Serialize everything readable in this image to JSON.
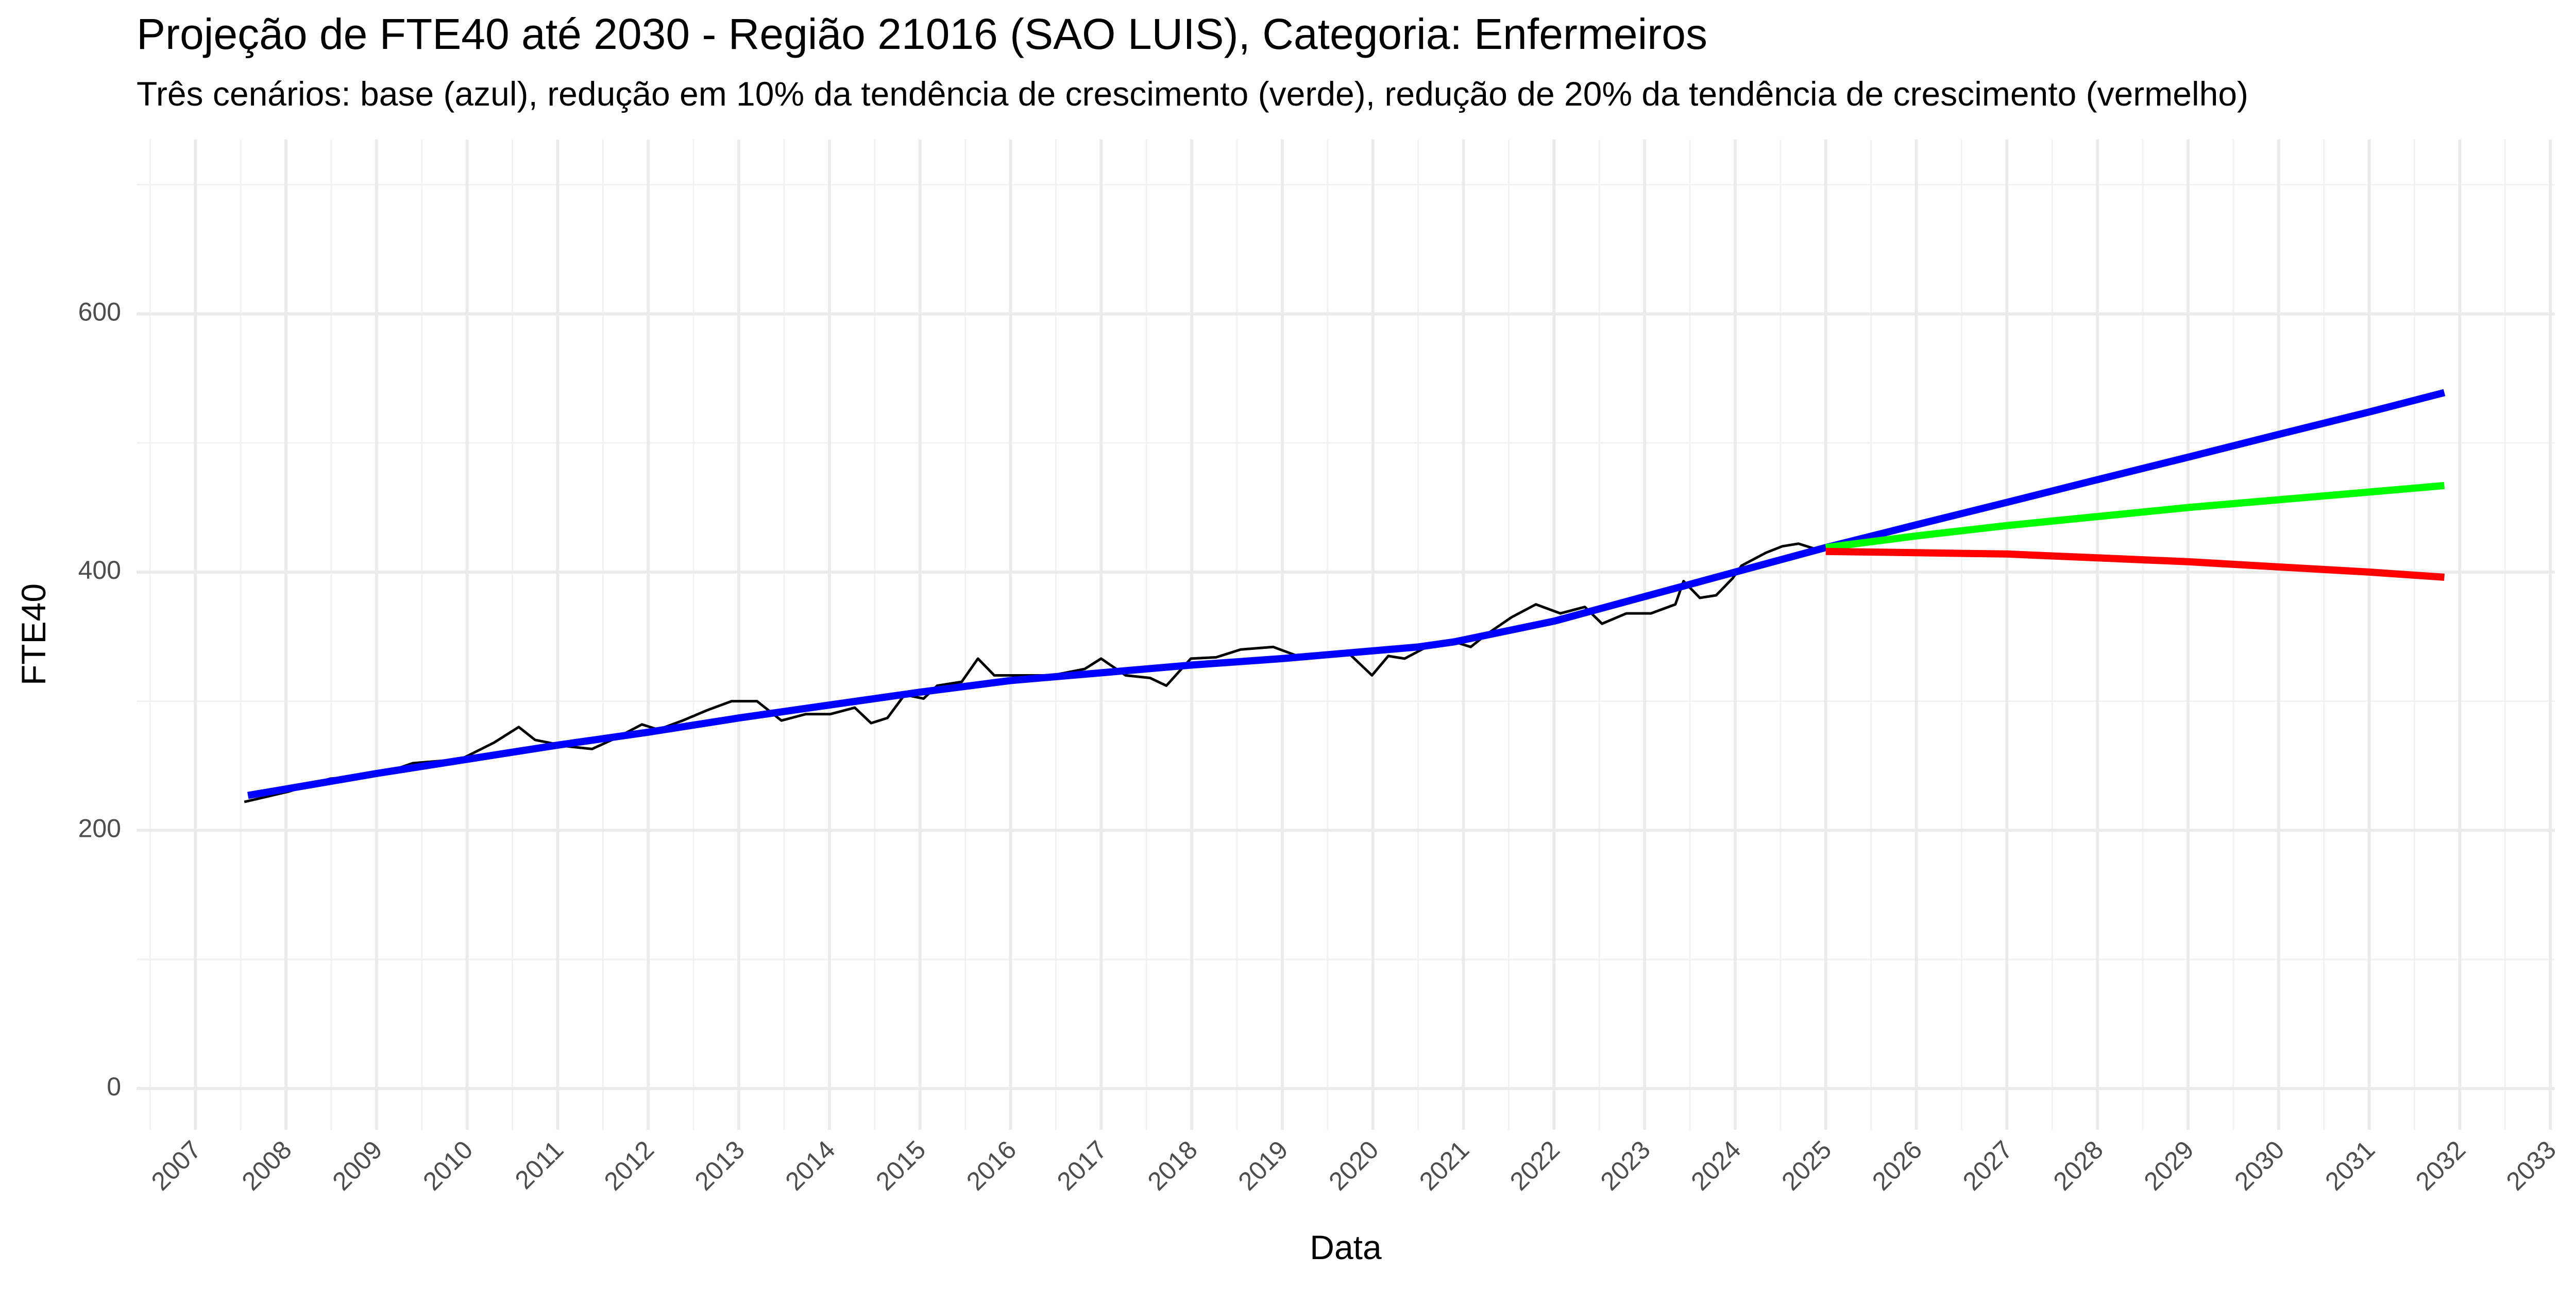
{
  "chart_data": {
    "type": "line",
    "title": "Projeção de FTE40 até 2030 - Região 21016 (SAO LUIS), Categoria: Enfermeiros",
    "subtitle": "Três cenários: base (azul), redução em 10% da tendência de crescimento (verde), redução de 20% da tendência de crescimento (vermelho)",
    "x_label": "Data",
    "y_label": "FTE40",
    "xlim": [
      2006.35,
      2033.05
    ],
    "ylim": [
      -32,
      735
    ],
    "xticks": [
      2007,
      2008,
      2009,
      2010,
      2011,
      2012,
      2013,
      2014,
      2015,
      2016,
      2017,
      2018,
      2019,
      2020,
      2021,
      2022,
      2023,
      2024,
      2025,
      2026,
      2027,
      2028,
      2029,
      2030,
      2031,
      2032,
      2033
    ],
    "xminor": [
      2006.5,
      2007.5,
      2008.5,
      2009.5,
      2010.5,
      2011.5,
      2012.5,
      2013.5,
      2014.5,
      2015.5,
      2016.5,
      2017.5,
      2018.5,
      2019.5,
      2020.5,
      2021.5,
      2022.5,
      2023.5,
      2024.5,
      2025.5,
      2026.5,
      2027.5,
      2028.5,
      2029.5,
      2030.5,
      2031.5,
      2032.5
    ],
    "yticks": [
      0,
      200,
      400,
      600
    ],
    "yminor": [
      100,
      300,
      500,
      700
    ],
    "grid": true,
    "series": [
      {
        "color": "#000000",
        "x": [
          2007.54,
          2008.03,
          2008.49,
          2009.03,
          2009.4,
          2009.93,
          2010.3,
          2010.57,
          2010.75,
          2011.11,
          2011.38,
          2011.66,
          2011.93,
          2012.11,
          2012.38,
          2012.65,
          2012.92,
          2013.2,
          2013.47,
          2013.74,
          2014.01,
          2014.28,
          2014.46,
          2014.64,
          2014.83,
          2015.04,
          2015.19,
          2015.46,
          2015.64,
          2015.82,
          2016.0,
          2016.46,
          2016.82,
          2017.0,
          2017.27,
          2017.54,
          2017.72,
          2017.99,
          2018.27,
          2018.54,
          2018.9,
          2019.17,
          2019.45,
          2019.72,
          2019.99,
          2020.17,
          2020.35,
          2020.62,
          2020.9,
          2021.08,
          2021.26,
          2021.53,
          2021.8,
          2022.07,
          2022.34,
          2022.53,
          2022.8,
          2023.07,
          2023.34,
          2023.43,
          2023.61,
          2023.79,
          2023.97,
          2024.07,
          2024.34,
          2024.52,
          2024.7,
          2024.88,
          2025.0
        ],
        "values": [
          222,
          230,
          240,
          243,
          252,
          255,
          268,
          280,
          270,
          265,
          263,
          272,
          282,
          278,
          285,
          293,
          300,
          300,
          285,
          290,
          290,
          295,
          283,
          287,
          305,
          302,
          312,
          315,
          333,
          320,
          320,
          320,
          325,
          333,
          320,
          318,
          312,
          333,
          334,
          340,
          342,
          335,
          337,
          338,
          320,
          335,
          333,
          343,
          346,
          342,
          352,
          365,
          375,
          368,
          373,
          360,
          368,
          368,
          375,
          393,
          380,
          382,
          395,
          405,
          415,
          420,
          422,
          418,
          420
        ]
      },
      {
        "color": "#0000ff",
        "x": [
          2007.58,
          2008,
          2009,
          2010,
          2011,
          2012,
          2013,
          2014,
          2015,
          2016,
          2017,
          2018,
          2019,
          2020,
          2020.5,
          2020.9,
          2022,
          2023,
          2024,
          2025,
          2026,
          2027,
          2028,
          2029,
          2030,
          2031,
          2031.83
        ],
        "values": [
          227,
          232,
          244,
          255,
          266,
          276,
          287,
          297,
          307,
          316,
          322,
          328,
          333,
          339,
          342,
          346,
          362,
          381,
          400,
          419,
          436.6,
          454,
          471.6,
          489,
          506.6,
          524,
          539
        ]
      },
      {
        "color": "#00ff00",
        "x": [
          2025,
          2026,
          2027,
          2028,
          2029,
          2030,
          2031,
          2031.83
        ],
        "values": [
          419,
          428,
          436,
          443,
          450,
          456,
          462,
          467
        ]
      },
      {
        "color": "#ff0000",
        "x": [
          2025,
          2026,
          2027,
          2028,
          2029,
          2030,
          2031,
          2031.83
        ],
        "values": [
          416,
          415,
          414,
          411,
          408,
          404,
          400,
          396
        ]
      }
    ]
  }
}
